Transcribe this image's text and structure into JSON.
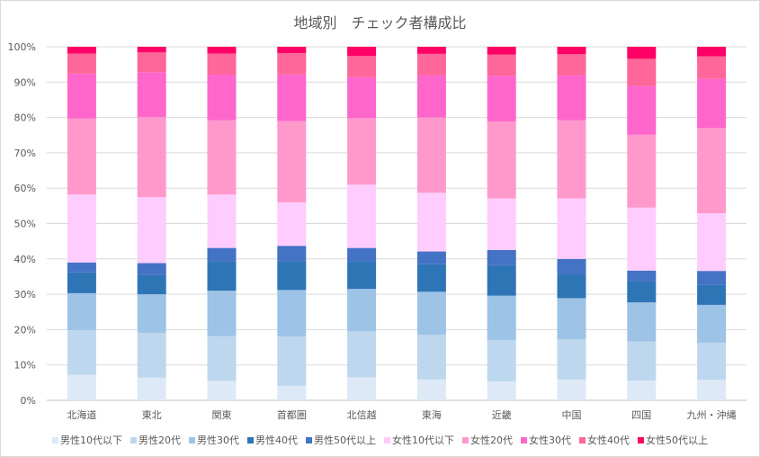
{
  "chart_data": {
    "type": "bar",
    "stacked": true,
    "title": "地域別　チェック者構成比",
    "categories": [
      "北海道",
      "東北",
      "関東",
      "首都圏",
      "北信越",
      "東海",
      "近畿",
      "中国",
      "四国",
      "九州・沖縄"
    ],
    "yticks": [
      "0%",
      "10%",
      "20%",
      "30%",
      "40%",
      "50%",
      "60%",
      "70%",
      "80%",
      "90%",
      "100%"
    ],
    "ylim": [
      0,
      100
    ],
    "grid": true,
    "legend_position": "bottom",
    "series": [
      {
        "name": "男性10代以下",
        "color": "#dde9f6",
        "values": [
          7.2,
          6.4,
          5.5,
          4.1,
          6.5,
          5.9,
          5.3,
          5.9,
          5.6,
          5.8
        ]
      },
      {
        "name": "男性20代",
        "color": "#bdd7ee",
        "values": [
          12.6,
          12.7,
          12.7,
          14.0,
          13.0,
          12.6,
          11.7,
          11.4,
          11.0,
          10.5
        ]
      },
      {
        "name": "男性30代",
        "color": "#9dc3e6",
        "values": [
          10.5,
          10.9,
          12.8,
          13.1,
          12.0,
          12.2,
          12.6,
          11.6,
          11.1,
          10.7
        ]
      },
      {
        "name": "男性40代",
        "color": "#2e75b6",
        "values": [
          5.9,
          5.4,
          8.2,
          8.2,
          7.7,
          7.8,
          8.6,
          6.6,
          5.9,
          5.6
        ]
      },
      {
        "name": "男性50代以上",
        "color": "#4472c4",
        "values": [
          2.8,
          3.4,
          3.9,
          4.3,
          3.9,
          3.6,
          4.3,
          4.5,
          3.1,
          4.0
        ]
      },
      {
        "name": "女性10代以下",
        "color": "#ffccff",
        "values": [
          19.2,
          18.7,
          15.1,
          12.3,
          17.9,
          16.6,
          14.6,
          17.1,
          17.8,
          16.3
        ]
      },
      {
        "name": "女性20代",
        "color": "#ff99cc",
        "values": [
          21.5,
          22.6,
          21.0,
          23.0,
          18.8,
          21.3,
          21.8,
          22.1,
          20.6,
          24.1
        ]
      },
      {
        "name": "女性30代",
        "color": "#ff66cc",
        "values": [
          12.7,
          12.7,
          12.9,
          13.2,
          11.6,
          12.0,
          12.9,
          12.7,
          13.8,
          13.9
        ]
      },
      {
        "name": "女性40代",
        "color": "#ff6699",
        "values": [
          5.7,
          5.6,
          6.0,
          6.0,
          6.0,
          6.0,
          6.0,
          6.0,
          7.7,
          6.4
        ]
      },
      {
        "name": "女性50代以上",
        "color": "#ff0066",
        "values": [
          1.9,
          1.6,
          1.9,
          1.8,
          2.6,
          2.0,
          2.2,
          2.1,
          3.4,
          2.7
        ]
      }
    ]
  }
}
